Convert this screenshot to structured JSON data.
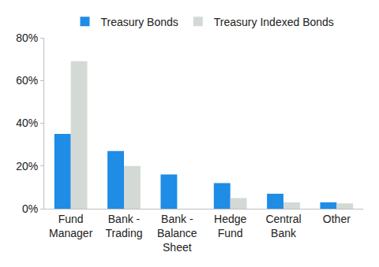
{
  "chart_data": {
    "type": "bar",
    "categories": [
      "Fund Manager",
      "Bank - Trading",
      "Bank - Balance Sheet",
      "Hedge Fund",
      "Central Bank",
      "Other"
    ],
    "series": [
      {
        "name": "Treasury Bonds",
        "color": "#1f8ce6",
        "values": [
          35,
          27,
          16,
          12,
          7,
          3
        ]
      },
      {
        "name": "Treasury Indexed Bonds",
        "color": "#d3dad5",
        "values": [
          69,
          20,
          0,
          5,
          3,
          2.5
        ]
      }
    ],
    "ylim": [
      0,
      80
    ],
    "yticks": [
      {
        "value": 0,
        "label": "0%"
      },
      {
        "value": 20,
        "label": "20%"
      },
      {
        "value": 40,
        "label": "40%"
      },
      {
        "value": 60,
        "label": "60%"
      },
      {
        "value": 80,
        "label": "80%"
      }
    ],
    "grid": false,
    "legend": "top"
  }
}
